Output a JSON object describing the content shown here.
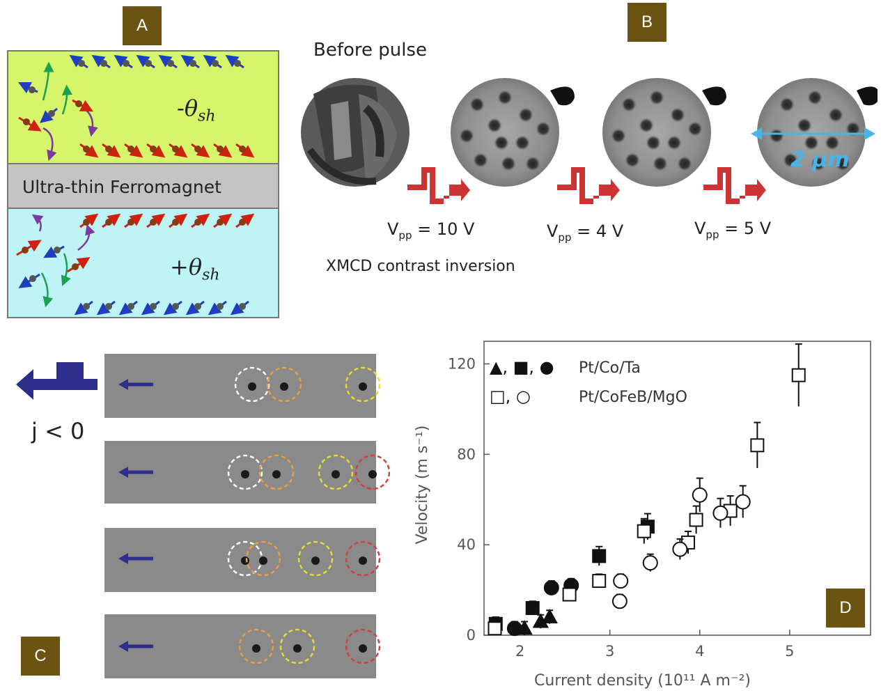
{
  "badges": {
    "a": "A",
    "b": "B",
    "c": "C",
    "d": "D"
  },
  "panelA": {
    "top_theta": "-θ",
    "top_sub": "sh",
    "middle_label": "Ultra-thin Ferromagnet",
    "bottom_theta": "+θ",
    "bottom_sub": "sh"
  },
  "panelB": {
    "before": "Before pulse",
    "scale": "2 μm",
    "xmcd": "XMCD contrast inversion",
    "pulses": [
      {
        "v": "V",
        "sub": "pp",
        "value": " = 10 V"
      },
      {
        "v": "V",
        "sub": "pp",
        "value": " = 4 V"
      },
      {
        "v": "V",
        "sub": "pp",
        "value": " = 5 V"
      }
    ]
  },
  "panelC": {
    "current": "j < 0"
  },
  "chart_data": {
    "type": "scatter",
    "xlabel": "Current density (10¹¹ A m⁻²)",
    "ylabel": "Velocity (m s⁻¹)",
    "xlim": [
      1.6,
      5.9
    ],
    "ylim": [
      0,
      130
    ],
    "xticks": [
      "2",
      "3",
      "4",
      "5"
    ],
    "yticks": [
      "0",
      "40",
      "80",
      "120"
    ],
    "legend": [
      {
        "symbols": "▲, ■, ●",
        "label": "Pt/Co/Ta"
      },
      {
        "symbols": "□, ○",
        "label": "Pt/CoFeB/MgO"
      }
    ],
    "series": [
      {
        "name": "Pt/Co/Ta",
        "marker": "triangle",
        "filled": true,
        "x": [
          2.05,
          2.23,
          2.33
        ],
        "y": [
          3,
          6,
          8
        ]
      },
      {
        "name": "Pt/Co/Ta",
        "marker": "square",
        "filled": true,
        "x": [
          1.73,
          2.14,
          2.88,
          3.42
        ],
        "y": [
          5,
          12,
          35,
          48
        ]
      },
      {
        "name": "Pt/Co/Ta",
        "marker": "circle",
        "filled": true,
        "x": [
          1.94,
          2.35,
          2.57
        ],
        "y": [
          3,
          21,
          22
        ]
      },
      {
        "name": "Pt/CoFeB/MgO",
        "marker": "square",
        "filled": false,
        "x": [
          1.72,
          2.55,
          2.88,
          3.38,
          3.87,
          3.96,
          4.34,
          4.64,
          5.1
        ],
        "y": [
          3,
          18,
          24,
          46,
          41,
          51,
          55,
          84,
          115
        ]
      },
      {
        "name": "Pt/CoFeB/MgO",
        "marker": "circle",
        "filled": false,
        "x": [
          3.11,
          3.12,
          3.45,
          3.78,
          4.0,
          4.23,
          4.48
        ],
        "y": [
          15,
          24,
          32,
          38,
          62,
          54,
          59
        ]
      }
    ]
  }
}
